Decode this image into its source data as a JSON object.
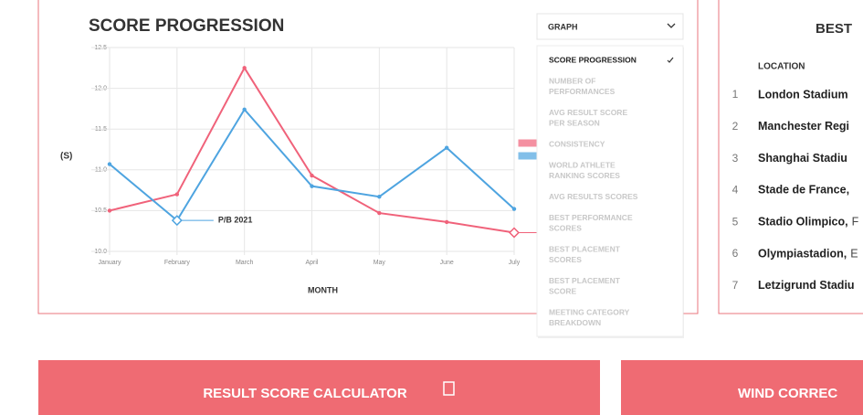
{
  "chart_data": {
    "type": "line",
    "title": "SCORE PROGRESSION",
    "y_label": "(S)",
    "x_label": "MONTH",
    "categories": [
      "January",
      "February",
      "March",
      "April",
      "May",
      "June",
      "July"
    ],
    "series": [
      {
        "color": "#f0627a",
        "values": [
          10.5,
          10.7,
          12.25,
          10.93,
          10.47,
          10.36,
          10.23
        ]
      },
      {
        "color": "#4ea4e0",
        "values": [
          11.07,
          10.38,
          11.74,
          10.8,
          10.67,
          11.27,
          10.52
        ]
      }
    ],
    "ylim": [
      10,
      12.5
    ],
    "yticks": [
      {
        "value": 10,
        "label": "10.0"
      },
      10.5,
      {
        "value": 11,
        "label": "11.0"
      },
      11.5,
      {
        "value": 12,
        "label": "12.0"
      },
      12.5
    ],
    "grid": true,
    "annotation": "P/B 2021"
  },
  "dropdown": {
    "label": "GRAPH",
    "options": [
      [
        "SCORE PROGRESSION"
      ],
      [
        "NUMBER OF",
        "PERFORMANCES"
      ],
      [
        "AVG RESULT SCORE",
        "PER SEASON"
      ],
      [
        "CONSISTENCY"
      ],
      [
        "WORLD ATHLETE",
        "RANKING SCORES"
      ],
      [
        "AVG RESULTS SCORES"
      ],
      [
        "BEST PERFORMANCE",
        "SCORES"
      ],
      [
        "BEST PLACEMENT",
        "SCORES"
      ],
      [
        "BEST PLACEMENT",
        "SCORE"
      ],
      [
        "MEETING CATEGORY",
        "BREAKDOWN"
      ]
    ]
  },
  "best_table": {
    "title": "BEST",
    "header": "LOCATION",
    "rows": [
      [
        "1",
        "London Stadium"
      ],
      [
        "2",
        "Manchester Regi"
      ],
      [
        "3",
        "Shanghai Stadiu"
      ],
      [
        "4",
        "Stade de France,"
      ],
      [
        "5",
        "Stadio Olimpico,",
        "F"
      ],
      [
        "6",
        "Olympiastadion,",
        "E"
      ],
      [
        "7",
        "Letzigrund Stadiu"
      ]
    ]
  },
  "buttons": [
    "RESULT SCORE CALCULATOR",
    "WIND CORREC"
  ]
}
